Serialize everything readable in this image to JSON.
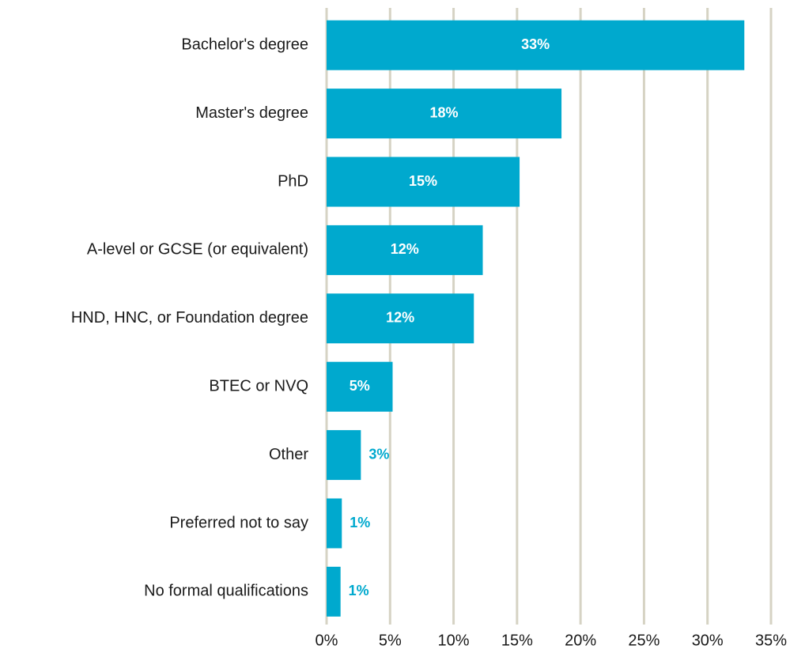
{
  "chart_data": {
    "type": "bar",
    "orientation": "horizontal",
    "categories": [
      "Bachelor's degree",
      "Master's degree",
      "PhD",
      "A-level or GCSE (or equivalent)",
      "HND, HNC, or Foundation degree",
      "BTEC or NVQ",
      "Other",
      "Preferred not to say",
      "No formal qualifications"
    ],
    "values": [
      32.9,
      18.5,
      15.2,
      12.3,
      11.6,
      5.2,
      2.7,
      1.2,
      1.1
    ],
    "value_labels": [
      "33%",
      "18%",
      "15%",
      "12%",
      "12%",
      "5%",
      "3%",
      "1%",
      "1%"
    ],
    "color": "#00a9ce",
    "xlim": [
      0,
      35
    ],
    "xticks": [
      {
        "value": 0,
        "label": "0%"
      },
      {
        "value": 5,
        "label": "5%"
      },
      {
        "value": 10,
        "label": "10%"
      },
      {
        "value": 15,
        "label": "15%"
      },
      {
        "value": 20,
        "label": "20%"
      },
      {
        "value": 25,
        "label": "25%"
      },
      {
        "value": 30,
        "label": "30%"
      },
      {
        "value": 35,
        "label": "35%"
      }
    ],
    "grid": true
  }
}
